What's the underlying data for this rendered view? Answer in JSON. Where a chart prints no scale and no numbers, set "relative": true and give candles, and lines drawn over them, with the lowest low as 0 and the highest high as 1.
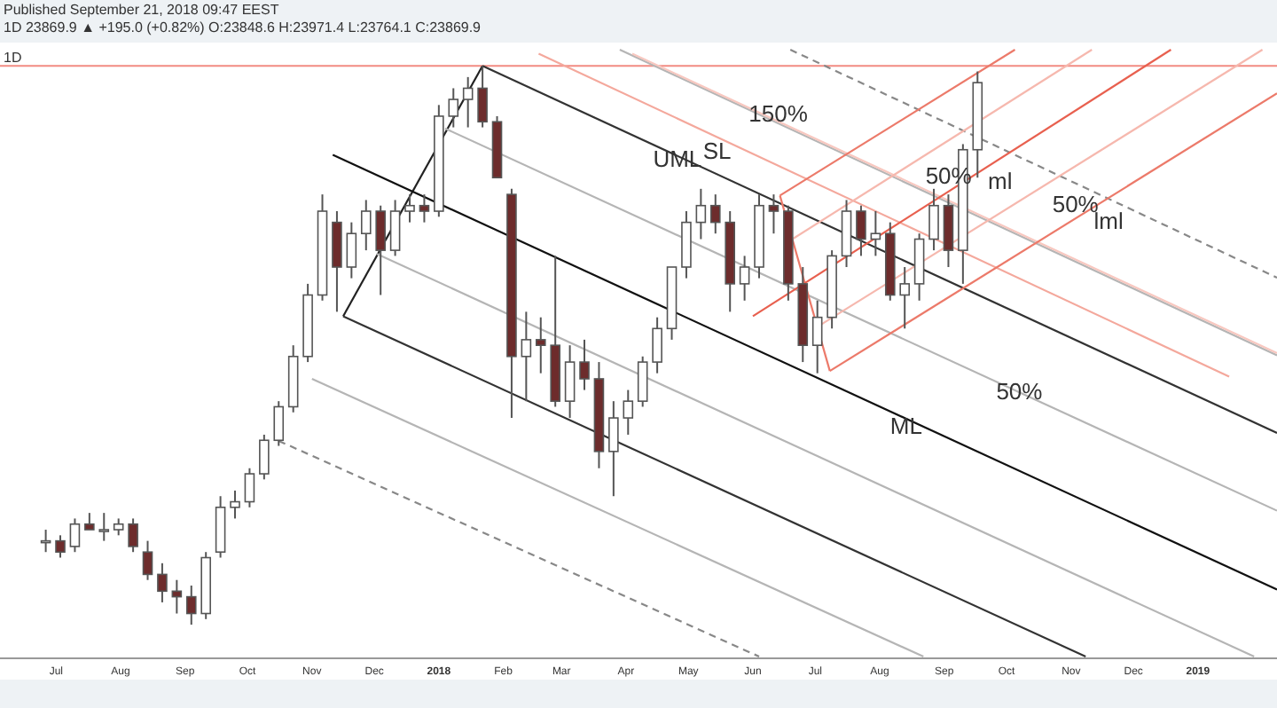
{
  "chart_data": {
    "type": "candlestick",
    "title": "1D",
    "subtitle": "1D 23869.9 ▲ +195.0 (+0.82%) O:23848.6 H:23971.4 L:23764.1 C:23869.9",
    "relative": true,
    "tick_labels": "x",
    "grid": false,
    "xlim": [
      "2017-06-04",
      "2019-02-08"
    ],
    "xticks": [
      {
        "value": "2017-07-01",
        "label": "Jul"
      },
      {
        "value": "2017-08-01",
        "label": "Aug"
      },
      {
        "value": "2017-09-01",
        "label": "Sep"
      },
      {
        "value": "2017-10-01",
        "label": "Oct"
      },
      {
        "value": "2017-11-01",
        "label": "Nov"
      },
      {
        "value": "2017-12-01",
        "label": "Dec"
      },
      {
        "value": "2018-01-01",
        "label": "2018"
      },
      {
        "value": "2018-02-01",
        "label": "Feb"
      },
      {
        "value": "2018-03-01",
        "label": "Mar"
      },
      {
        "value": "2018-04-01",
        "label": "Apr"
      },
      {
        "value": "2018-05-01",
        "label": "May"
      },
      {
        "value": "2018-06-01",
        "label": "Jun"
      },
      {
        "value": "2018-07-01",
        "label": "Jul"
      },
      {
        "value": "2018-08-01",
        "label": "Aug"
      },
      {
        "value": "2018-09-01",
        "label": "Sep"
      },
      {
        "value": "2018-10-01",
        "label": "Oct"
      },
      {
        "value": "2018-11-01",
        "label": "Nov"
      },
      {
        "value": "2018-12-01",
        "label": "Dec"
      },
      {
        "value": "2019-01-01",
        "label": "2019"
      }
    ],
    "x": [
      "2017-06-26",
      "2017-07-03",
      "2017-07-10",
      "2017-07-17",
      "2017-07-24",
      "2017-07-31",
      "2017-08-07",
      "2017-08-14",
      "2017-08-21",
      "2017-08-28",
      "2017-09-04",
      "2017-09-11",
      "2017-09-18",
      "2017-09-25",
      "2017-10-02",
      "2017-10-09",
      "2017-10-16",
      "2017-10-23",
      "2017-10-30",
      "2017-11-06",
      "2017-11-13",
      "2017-11-20",
      "2017-11-27",
      "2017-12-04",
      "2017-12-11",
      "2017-12-18",
      "2017-12-25",
      "2018-01-01",
      "2018-01-08",
      "2018-01-15",
      "2018-01-22",
      "2018-01-29",
      "2018-02-05",
      "2018-02-12",
      "2018-02-19",
      "2018-02-26",
      "2018-03-05",
      "2018-03-12",
      "2018-03-19",
      "2018-03-26",
      "2018-04-02",
      "2018-04-09",
      "2018-04-16",
      "2018-04-23",
      "2018-04-30",
      "2018-05-07",
      "2018-05-14",
      "2018-05-21",
      "2018-05-28",
      "2018-06-04",
      "2018-06-11",
      "2018-06-18",
      "2018-06-25",
      "2018-07-02",
      "2018-07-09",
      "2018-07-16",
      "2018-07-23",
      "2018-07-30",
      "2018-08-06",
      "2018-08-13",
      "2018-08-20",
      "2018-08-27",
      "2018-09-03",
      "2018-09-10",
      "2018-09-17"
    ],
    "ohlc": [
      [
        0.15,
        0.17,
        0.13,
        0.15
      ],
      [
        0.15,
        0.16,
        0.12,
        0.13
      ],
      [
        0.14,
        0.19,
        0.13,
        0.18
      ],
      [
        0.18,
        0.2,
        0.17,
        0.17
      ],
      [
        0.17,
        0.2,
        0.15,
        0.17
      ],
      [
        0.17,
        0.19,
        0.16,
        0.18
      ],
      [
        0.18,
        0.19,
        0.13,
        0.14
      ],
      [
        0.13,
        0.15,
        0.08,
        0.09
      ],
      [
        0.09,
        0.11,
        0.04,
        0.06
      ],
      [
        0.06,
        0.08,
        0.02,
        0.05
      ],
      [
        0.05,
        0.07,
        0,
        0.02
      ],
      [
        0.02,
        0.13,
        0.01,
        0.12
      ],
      [
        0.13,
        0.23,
        0.12,
        0.21
      ],
      [
        0.21,
        0.24,
        0.19,
        0.22
      ],
      [
        0.22,
        0.28,
        0.21,
        0.27
      ],
      [
        0.27,
        0.34,
        0.26,
        0.33
      ],
      [
        0.33,
        0.4,
        0.32,
        0.39
      ],
      [
        0.39,
        0.5,
        0.38,
        0.48
      ],
      [
        0.48,
        0.61,
        0.47,
        0.59
      ],
      [
        0.59,
        0.77,
        0.58,
        0.74
      ],
      [
        0.72,
        0.74,
        0.56,
        0.64
      ],
      [
        0.64,
        0.72,
        0.62,
        0.7
      ],
      [
        0.7,
        0.76,
        0.67,
        0.74
      ],
      [
        0.74,
        0.75,
        0.59,
        0.67
      ],
      [
        0.67,
        0.76,
        0.66,
        0.74
      ],
      [
        0.74,
        0.77,
        0.72,
        0.75
      ],
      [
        0.75,
        0.77,
        0.72,
        0.74
      ],
      [
        0.74,
        0.93,
        0.73,
        0.91
      ],
      [
        0.91,
        0.96,
        0.89,
        0.94
      ],
      [
        0.94,
        0.98,
        0.89,
        0.96
      ],
      [
        0.96,
        1,
        0.89,
        0.9
      ],
      [
        0.9,
        0.91,
        0.8,
        0.8
      ],
      [
        0.77,
        0.78,
        0.37,
        0.48
      ],
      [
        0.48,
        0.56,
        0.4,
        0.51
      ],
      [
        0.51,
        0.55,
        0.45,
        0.5
      ],
      [
        0.5,
        0.66,
        0.39,
        0.4
      ],
      [
        0.4,
        0.5,
        0.37,
        0.47
      ],
      [
        0.47,
        0.51,
        0.42,
        0.44
      ],
      [
        0.44,
        0.47,
        0.28,
        0.31
      ],
      [
        0.31,
        0.4,
        0.23,
        0.37
      ],
      [
        0.37,
        0.42,
        0.34,
        0.4
      ],
      [
        0.4,
        0.48,
        0.39,
        0.47
      ],
      [
        0.47,
        0.55,
        0.45,
        0.53
      ],
      [
        0.53,
        0.64,
        0.51,
        0.64
      ],
      [
        0.64,
        0.74,
        0.62,
        0.72
      ],
      [
        0.72,
        0.78,
        0.69,
        0.75
      ],
      [
        0.75,
        0.77,
        0.7,
        0.72
      ],
      [
        0.72,
        0.74,
        0.56,
        0.61
      ],
      [
        0.61,
        0.66,
        0.58,
        0.64
      ],
      [
        0.64,
        0.77,
        0.62,
        0.75
      ],
      [
        0.75,
        0.77,
        0.7,
        0.74
      ],
      [
        0.74,
        0.75,
        0.58,
        0.61
      ],
      [
        0.61,
        0.64,
        0.47,
        0.5
      ],
      [
        0.5,
        0.58,
        0.45,
        0.55
      ],
      [
        0.55,
        0.67,
        0.53,
        0.66
      ],
      [
        0.66,
        0.76,
        0.64,
        0.74
      ],
      [
        0.74,
        0.75,
        0.66,
        0.69
      ],
      [
        0.69,
        0.74,
        0.66,
        0.7
      ],
      [
        0.7,
        0.72,
        0.58,
        0.59
      ],
      [
        0.59,
        0.64,
        0.53,
        0.61
      ],
      [
        0.61,
        0.7,
        0.58,
        0.69
      ],
      [
        0.69,
        0.78,
        0.67,
        0.75
      ],
      [
        0.75,
        0.77,
        0.64,
        0.67
      ],
      [
        0.67,
        0.86,
        0.61,
        0.85
      ],
      [
        0.85,
        0.99,
        0.8,
        0.97
      ]
    ],
    "series": [
      {
        "type": "line",
        "color": "#222222",
        "x": [
          "2017-11-16",
          "2018-01-22"
        ],
        "values": [
          0.552,
          1
        ]
      },
      {
        "type": "line",
        "color": "#111111",
        "x": [
          "2017-11-11",
          "2019-02-08"
        ],
        "values": [
          0.841,
          0.063
        ]
      },
      {
        "type": "line",
        "color": "#333333",
        "x": [
          "2018-01-22",
          "2019-02-08"
        ],
        "values": [
          1,
          0.343
        ]
      },
      {
        "type": "line",
        "color": "#333333",
        "x": [
          "2017-11-16",
          "2018-11-08"
        ],
        "values": [
          0.552,
          -0.057
        ]
      },
      {
        "type": "line",
        "color": "#b5b5b5",
        "x": [
          "2018-01-04",
          "2019-02-08"
        ],
        "values": [
          0.888,
          0.204
        ]
      },
      {
        "type": "line",
        "color": "#b5b5b5",
        "x": [
          "2017-12-02",
          "2019-01-28"
        ],
        "values": [
          0.664,
          -0.057
        ]
      },
      {
        "type": "line",
        "color": "#b5b5b5",
        "x": [
          "2018-03-29",
          "2019-02-08"
        ],
        "values": [
          1.029,
          0.482
        ]
      },
      {
        "type": "line",
        "color": "#b5b5b5",
        "x": [
          "2017-11-01",
          "2018-08-22"
        ],
        "values": [
          0.44,
          -0.057
        ]
      },
      {
        "type": "line",
        "color": "#888888",
        "line_style": "dashed",
        "x": [
          "2018-06-19",
          "2019-02-08"
        ],
        "values": [
          1.029,
          0.621
        ]
      },
      {
        "type": "line",
        "color": "#888888",
        "line_style": "dashed",
        "x": [
          "2017-10-16",
          "2018-06-04"
        ],
        "values": [
          0.329,
          -0.057
        ]
      },
      {
        "type": "line",
        "color": "#f4a89c",
        "x": [
          "2018-02-18",
          "2019-01-16"
        ],
        "values": [
          1.022,
          0.444
        ]
      },
      {
        "type": "line",
        "color": "#f8c8c0",
        "x": [
          "2018-04-04",
          "2019-02-08"
        ],
        "values": [
          1.022,
          0.486
        ]
      },
      {
        "type": "line",
        "color": "#ec7a6a",
        "x": [
          "2018-06-14",
          "2018-07-08"
        ],
        "values": [
          0.768,
          0.454
        ]
      },
      {
        "type": "line",
        "color": "#e8604f",
        "x": [
          "2018-06-01",
          "2018-12-19"
        ],
        "values": [
          0.552,
          1.029
        ]
      },
      {
        "type": "line",
        "color": "#ec7a6a",
        "x": [
          "2018-06-14",
          "2018-10-05"
        ],
        "values": [
          0.768,
          1.029
        ]
      },
      {
        "type": "line",
        "color": "#f6b8ae",
        "x": [
          "2018-06-20",
          "2018-11-11"
        ],
        "values": [
          0.69,
          1.029
        ]
      },
      {
        "type": "line",
        "color": "#f6b8ae",
        "x": [
          "2018-07-02",
          "2019-02-01"
        ],
        "values": [
          0.533,
          1.029
        ]
      },
      {
        "type": "line",
        "color": "#ec7a6a",
        "x": [
          "2018-07-08",
          "2019-02-08"
        ],
        "values": [
          0.454,
          0.951
        ]
      }
    ],
    "ref_lines": [
      {
        "axis": "y",
        "value": 1,
        "color": "#f28b82"
      }
    ],
    "annotations": [
      "Published September 21, 2018 09:47 EEST",
      {
        "text": "150%",
        "x": "2018-05-30",
        "y": 0.94
      },
      {
        "text": "SL",
        "x": "2018-05-08",
        "y": 0.873
      },
      {
        "text": "UML",
        "x": "2018-04-14",
        "y": 0.859
      },
      {
        "text": "50%",
        "x": "2018-08-23",
        "y": 0.83
      },
      {
        "text": "ml",
        "x": "2018-09-22",
        "y": 0.82
      },
      {
        "text": "50%",
        "x": "2018-10-23",
        "y": 0.778
      },
      {
        "text": "lml",
        "x": "2018-11-12",
        "y": 0.748
      },
      {
        "text": "50%",
        "x": "2018-09-26",
        "y": 0.444
      },
      {
        "text": "ML",
        "x": "2018-08-06",
        "y": 0.382
      }
    ]
  }
}
